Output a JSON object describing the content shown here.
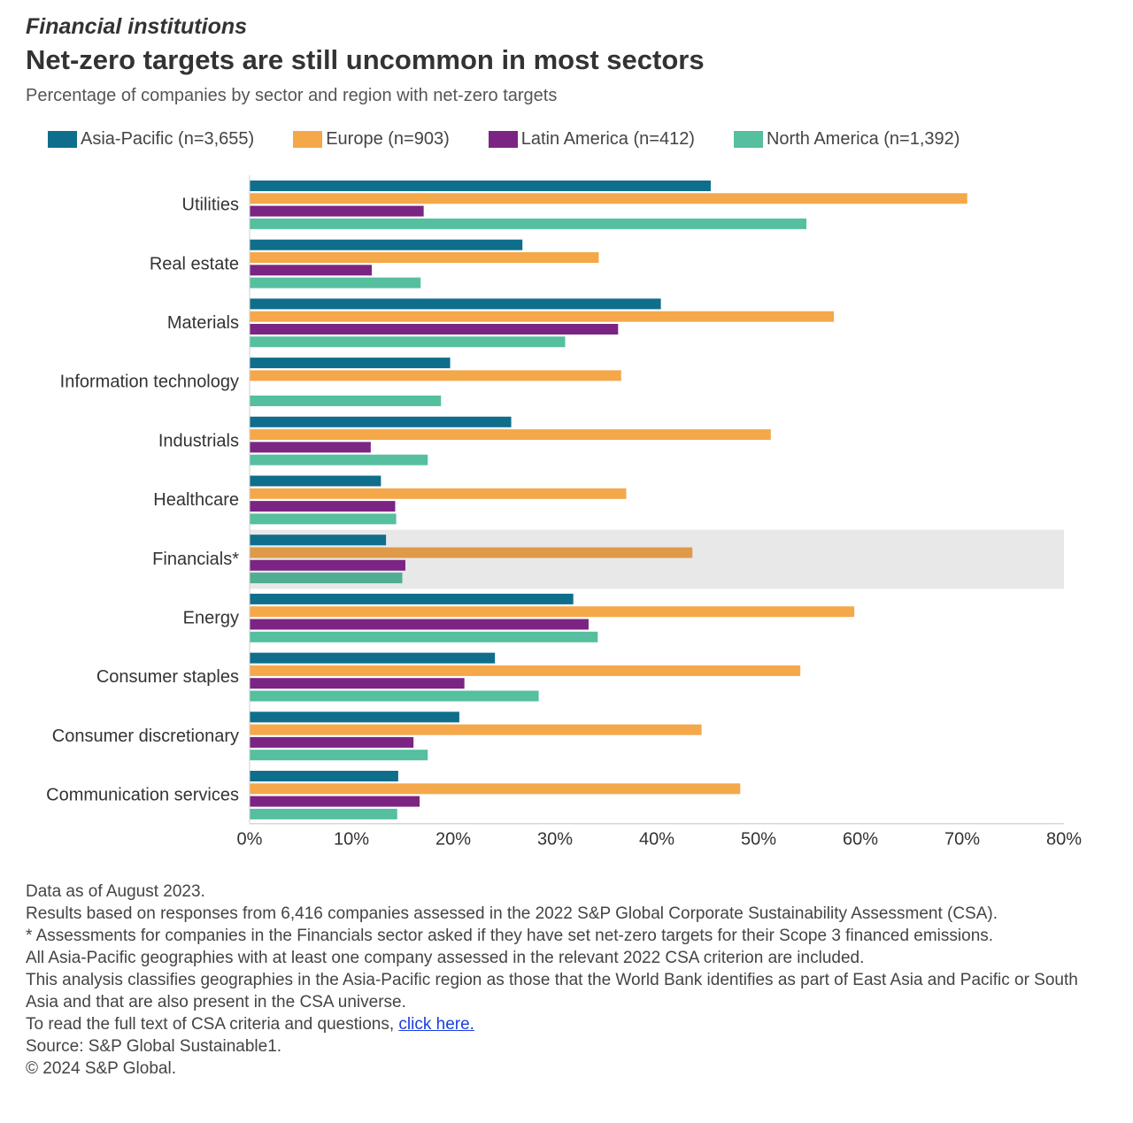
{
  "header": {
    "kicker": "Financial institutions",
    "title": "Net-zero targets are still uncommon in most sectors",
    "subtitle": "Percentage of companies by sector and region with net-zero targets"
  },
  "chart_data": {
    "type": "bar",
    "orientation": "horizontal",
    "categories": [
      "Utilities",
      "Real estate",
      "Materials",
      "Information technology",
      "Industrials",
      "Healthcare",
      "Financials*",
      "Energy",
      "Consumer staples",
      "Consumer discretionary",
      "Communication services"
    ],
    "series": [
      {
        "name": "Asia-Pacific (n=3,655)",
        "color": "#0f6e8c",
        "values": [
          45.3,
          26.8,
          40.4,
          19.7,
          25.7,
          12.9,
          13.4,
          31.8,
          24.1,
          20.6,
          14.6
        ]
      },
      {
        "name": "Europe (n=903)",
        "color": "#f4a84a",
        "values": [
          70.5,
          34.3,
          57.4,
          36.5,
          51.2,
          37.0,
          43.5,
          59.4,
          54.1,
          44.4,
          48.2
        ]
      },
      {
        "name": "Latin America (n=412)",
        "color": "#7b2483",
        "values": [
          17.1,
          12.0,
          36.2,
          0,
          11.9,
          14.3,
          15.3,
          33.3,
          21.1,
          16.1,
          16.7
        ]
      },
      {
        "name": "North America (n=1,392)",
        "color": "#55bf9f",
        "values": [
          54.7,
          16.8,
          31.0,
          18.8,
          17.5,
          14.4,
          15.0,
          34.2,
          28.4,
          17.5,
          14.5
        ]
      }
    ],
    "highlight_category": "Financials*",
    "highlight_colors": [
      "#0f6e8c",
      "#de9a48",
      "#7b2483",
      "#4fae92"
    ],
    "xlim": [
      0,
      80
    ],
    "xticks": [
      "0%",
      "10%",
      "20%",
      "30%",
      "40%",
      "50%",
      "60%",
      "70%",
      "80%"
    ],
    "xlabel": "",
    "ylabel": "",
    "legend_position": "top",
    "grid": false
  },
  "footer": {
    "notes": [
      "Data as of August 2023.",
      "Results based on responses from 6,416 companies assessed in the 2022 S&P Global Corporate Sustainability Assessment (CSA).",
      "* Assessments for companies in the Financials sector asked if they have set net-zero targets for their Scope 3 financed emissions.",
      "All Asia-Pacific geographies with at least one company assessed in the relevant 2022 CSA criterion are included.",
      "This analysis classifies geographies in the Asia-Pacific region as those that the World Bank identifies as part of East Asia and Pacific or South Asia and that are also present in the CSA universe."
    ],
    "read_more_prefix": "To read the full text of CSA criteria and questions, ",
    "read_more_link": "click here.",
    "source": "Source: S&P Global Sustainable1.",
    "copyright": "© 2024 S&P Global."
  }
}
